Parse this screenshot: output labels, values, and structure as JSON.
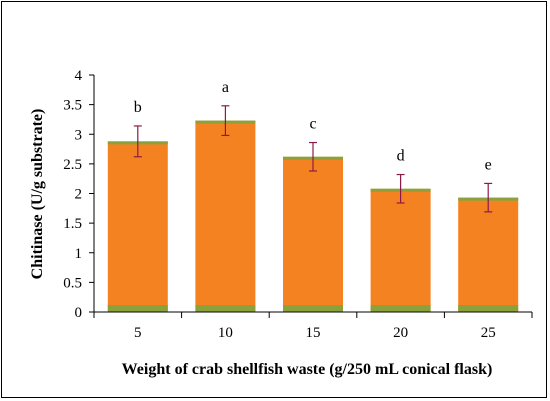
{
  "chart_data": {
    "type": "bar",
    "title": "",
    "xlabel": "Weight of crab shellfish waste (g/250 mL conical flask)",
    "ylabel": "Chitinase (U/g substrate)",
    "categories": [
      "5",
      "10",
      "15",
      "20",
      "25"
    ],
    "values": [
      2.88,
      3.23,
      2.62,
      2.08,
      1.93
    ],
    "error": [
      0.26,
      0.25,
      0.24,
      0.24,
      0.24
    ],
    "significance_letters": [
      "b",
      "a",
      "c",
      "d",
      "e"
    ],
    "ylim": [
      0,
      4
    ],
    "yticks": [
      "0",
      "0.5",
      "1",
      "1.5",
      "2",
      "2.5",
      "3",
      "3.5",
      "4"
    ],
    "grid": false,
    "colors": {
      "bar_fill": "#f58220",
      "bar_top": "#8aa23c",
      "bar_base": "#8aa23c",
      "error_bar": "#8b1a4a",
      "axis": "#000000"
    }
  }
}
